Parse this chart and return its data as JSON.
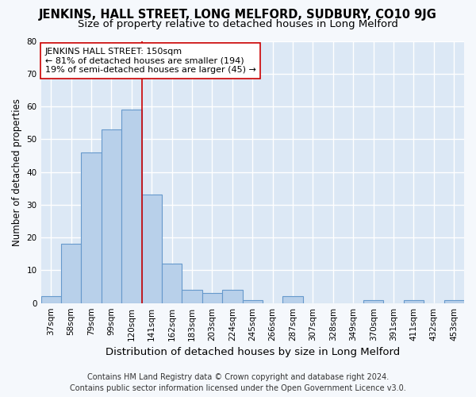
{
  "title": "JENKINS, HALL STREET, LONG MELFORD, SUDBURY, CO10 9JG",
  "subtitle": "Size of property relative to detached houses in Long Melford",
  "xlabel": "Distribution of detached houses by size in Long Melford",
  "ylabel": "Number of detached properties",
  "categories": [
    "37sqm",
    "58sqm",
    "79sqm",
    "99sqm",
    "120sqm",
    "141sqm",
    "162sqm",
    "183sqm",
    "203sqm",
    "224sqm",
    "245sqm",
    "266sqm",
    "287sqm",
    "307sqm",
    "328sqm",
    "349sqm",
    "370sqm",
    "391sqm",
    "411sqm",
    "432sqm",
    "453sqm"
  ],
  "values": [
    2,
    18,
    46,
    53,
    59,
    33,
    12,
    4,
    3,
    4,
    1,
    0,
    2,
    0,
    0,
    0,
    1,
    0,
    1,
    0,
    1
  ],
  "bar_color": "#b8d0ea",
  "bar_edge_color": "#6699cc",
  "vline_x": 5.0,
  "vline_color": "#cc0000",
  "annotation_line1": "JENKINS HALL STREET: 150sqm",
  "annotation_line2": "← 81% of detached houses are smaller (194)",
  "annotation_line3": "19% of semi-detached houses are larger (45) →",
  "annotation_box_color": "#ffffff",
  "annotation_box_edge": "#cc0000",
  "ylim": [
    0,
    80
  ],
  "yticks": [
    0,
    10,
    20,
    30,
    40,
    50,
    60,
    70,
    80
  ],
  "background_color": "#dce8f5",
  "grid_color": "#ffffff",
  "fig_background": "#f5f8fc",
  "footer_line1": "Contains HM Land Registry data © Crown copyright and database right 2024.",
  "footer_line2": "Contains public sector information licensed under the Open Government Licence v3.0.",
  "title_fontsize": 10.5,
  "subtitle_fontsize": 9.5,
  "xlabel_fontsize": 9.5,
  "ylabel_fontsize": 8.5,
  "tick_fontsize": 7.5,
  "annotation_fontsize": 8,
  "footer_fontsize": 7
}
